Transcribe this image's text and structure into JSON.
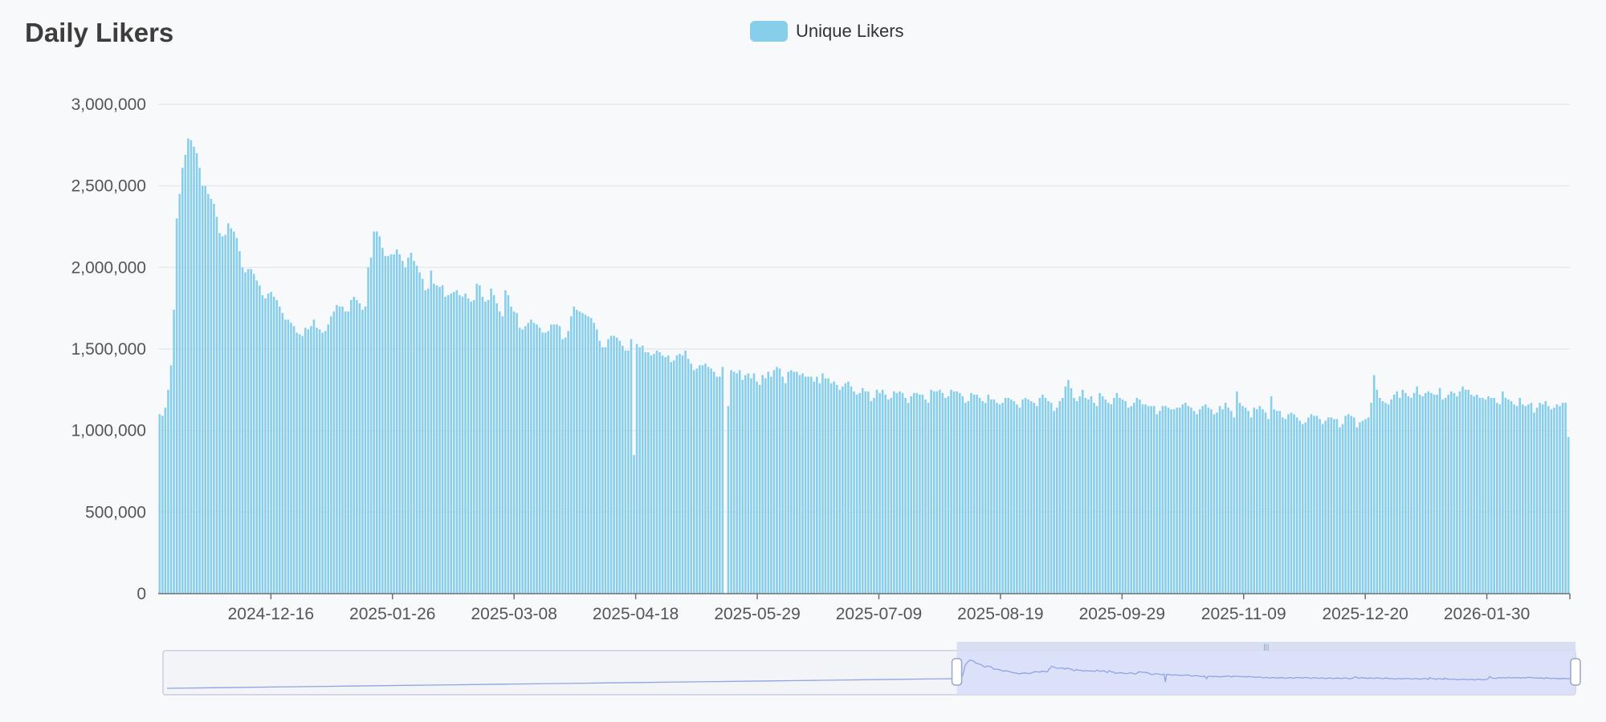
{
  "header": {
    "title": "Daily Likers"
  },
  "legend": {
    "label": "Unique Likers"
  },
  "colors": {
    "bar": "#87ceeb",
    "grid": "#e2e4ea",
    "axis": "#6e7079",
    "zoom_fill": "#d6ddf8",
    "zoom_line": "#8fa4e6",
    "zoom_border": "#c9cfe0"
  },
  "zoom": {
    "start_fraction": 0.562,
    "end_fraction": 1.0
  },
  "chart_data": {
    "type": "bar",
    "title": "Daily Likers",
    "xlabel": "",
    "ylabel": "",
    "ylim": [
      0,
      3000000
    ],
    "y_ticks": [
      "0",
      "500,000",
      "1,000,000",
      "1,500,000",
      "2,000,000",
      "2,500,000",
      "3,000,000"
    ],
    "x_ticks": [
      "2024-12-16",
      "2025-01-26",
      "2025-03-08",
      "2025-04-18",
      "2025-05-29",
      "2025-07-09",
      "2025-08-19",
      "2025-09-29",
      "2025-11-09",
      "2025-12-20",
      "2026-01-30"
    ],
    "x_start": "2024-11-08",
    "x_end": "2026-02-27",
    "grid": true,
    "legend_position": "top-center",
    "series": [
      {
        "name": "Unique Likers",
        "values": [
          1100000,
          1090000,
          1140000,
          1250000,
          1400000,
          1740000,
          2300000,
          2450000,
          2610000,
          2690000,
          2790000,
          2780000,
          2740000,
          2700000,
          2610000,
          2500000,
          2500000,
          2450000,
          2420000,
          2390000,
          2310000,
          2210000,
          2190000,
          2200000,
          2270000,
          2240000,
          2220000,
          2180000,
          2100000,
          2000000,
          1970000,
          1990000,
          1990000,
          1960000,
          1920000,
          1890000,
          1830000,
          1810000,
          1840000,
          1850000,
          1820000,
          1800000,
          1760000,
          1720000,
          1680000,
          1680000,
          1660000,
          1640000,
          1600000,
          1590000,
          1580000,
          1630000,
          1620000,
          1640000,
          1680000,
          1630000,
          1620000,
          1600000,
          1610000,
          1650000,
          1700000,
          1730000,
          1770000,
          1760000,
          1760000,
          1730000,
          1730000,
          1800000,
          1820000,
          1800000,
          1780000,
          1740000,
          1760000,
          2000000,
          2060000,
          2220000,
          2220000,
          2190000,
          2120000,
          2070000,
          2070000,
          2080000,
          2080000,
          2110000,
          2080000,
          2040000,
          2000000,
          2060000,
          2090000,
          2040000,
          2010000,
          1970000,
          1930000,
          1860000,
          1870000,
          1980000,
          1900000,
          1890000,
          1880000,
          1890000,
          1820000,
          1830000,
          1840000,
          1850000,
          1860000,
          1830000,
          1820000,
          1840000,
          1810000,
          1790000,
          1800000,
          1900000,
          1890000,
          1820000,
          1790000,
          1800000,
          1870000,
          1830000,
          1780000,
          1730000,
          1700000,
          1860000,
          1830000,
          1760000,
          1730000,
          1720000,
          1630000,
          1620000,
          1640000,
          1660000,
          1680000,
          1660000,
          1650000,
          1630000,
          1600000,
          1600000,
          1610000,
          1650000,
          1650000,
          1650000,
          1640000,
          1560000,
          1570000,
          1610000,
          1700000,
          1760000,
          1740000,
          1730000,
          1720000,
          1710000,
          1700000,
          1690000,
          1660000,
          1620000,
          1550000,
          1510000,
          1510000,
          1560000,
          1580000,
          1580000,
          1570000,
          1550000,
          1520000,
          1490000,
          1490000,
          1560000,
          850000,
          1530000,
          1510000,
          1520000,
          1480000,
          1480000,
          1460000,
          1470000,
          1490000,
          1480000,
          1460000,
          1450000,
          1460000,
          1420000,
          1430000,
          1460000,
          1470000,
          1460000,
          1490000,
          1440000,
          1410000,
          1370000,
          1380000,
          1400000,
          1400000,
          1410000,
          1390000,
          1380000,
          1360000,
          1330000,
          1330000,
          1390000,
          0,
          1150000,
          1370000,
          1360000,
          1350000,
          1370000,
          1310000,
          1340000,
          1350000,
          1320000,
          1350000,
          1300000,
          1280000,
          1340000,
          1320000,
          1360000,
          1330000,
          1370000,
          1390000,
          1380000,
          1330000,
          1290000,
          1360000,
          1370000,
          1360000,
          1360000,
          1340000,
          1350000,
          1330000,
          1330000,
          1330000,
          1300000,
          1330000,
          1290000,
          1350000,
          1320000,
          1320000,
          1290000,
          1300000,
          1280000,
          1250000,
          1270000,
          1290000,
          1300000,
          1270000,
          1240000,
          1220000,
          1230000,
          1260000,
          1240000,
          1240000,
          1180000,
          1200000,
          1250000,
          1230000,
          1250000,
          1220000,
          1190000,
          1200000,
          1240000,
          1230000,
          1240000,
          1230000,
          1200000,
          1170000,
          1210000,
          1230000,
          1230000,
          1220000,
          1220000,
          1190000,
          1170000,
          1250000,
          1240000,
          1240000,
          1250000,
          1230000,
          1200000,
          1210000,
          1250000,
          1240000,
          1240000,
          1230000,
          1210000,
          1170000,
          1180000,
          1230000,
          1220000,
          1220000,
          1200000,
          1180000,
          1170000,
          1220000,
          1190000,
          1190000,
          1170000,
          1160000,
          1170000,
          1200000,
          1200000,
          1190000,
          1180000,
          1160000,
          1140000,
          1190000,
          1200000,
          1190000,
          1180000,
          1170000,
          1150000,
          1200000,
          1220000,
          1200000,
          1180000,
          1170000,
          1120000,
          1140000,
          1180000,
          1200000,
          1270000,
          1310000,
          1260000,
          1200000,
          1180000,
          1210000,
          1250000,
          1200000,
          1190000,
          1210000,
          1170000,
          1150000,
          1230000,
          1210000,
          1190000,
          1170000,
          1160000,
          1200000,
          1230000,
          1200000,
          1190000,
          1180000,
          1140000,
          1150000,
          1170000,
          1200000,
          1190000,
          1160000,
          1160000,
          1150000,
          1150000,
          1150000,
          1100000,
          1120000,
          1150000,
          1150000,
          1140000,
          1130000,
          1130000,
          1140000,
          1140000,
          1160000,
          1170000,
          1150000,
          1140000,
          1120000,
          1100000,
          1130000,
          1150000,
          1160000,
          1140000,
          1130000,
          1100000,
          1110000,
          1150000,
          1130000,
          1170000,
          1140000,
          1120000,
          1080000,
          1240000,
          1170000,
          1150000,
          1140000,
          1120000,
          1080000,
          1140000,
          1130000,
          1150000,
          1130000,
          1110000,
          1070000,
          1210000,
          1130000,
          1120000,
          1120000,
          1080000,
          1070000,
          1100000,
          1110000,
          1100000,
          1080000,
          1060000,
          1040000,
          1050000,
          1080000,
          1100000,
          1090000,
          1090000,
          1070000,
          1040000,
          1060000,
          1080000,
          1080000,
          1070000,
          1070000,
          1020000,
          1040000,
          1090000,
          1100000,
          1090000,
          1080000,
          1020000,
          1050000,
          1060000,
          1070000,
          1080000,
          1170000,
          1340000,
          1250000,
          1200000,
          1180000,
          1170000,
          1160000,
          1190000,
          1220000,
          1240000,
          1200000,
          1250000,
          1230000,
          1210000,
          1200000,
          1230000,
          1270000,
          1220000,
          1210000,
          1230000,
          1240000,
          1230000,
          1220000,
          1220000,
          1260000,
          1190000,
          1200000,
          1220000,
          1240000,
          1230000,
          1210000,
          1240000,
          1270000,
          1250000,
          1250000,
          1220000,
          1210000,
          1220000,
          1200000,
          1200000,
          1190000,
          1210000,
          1200000,
          1200000,
          1170000,
          1160000,
          1240000,
          1200000,
          1190000,
          1180000,
          1160000,
          1150000,
          1200000,
          1160000,
          1150000,
          1160000,
          1170000,
          1110000,
          1140000,
          1170000,
          1160000,
          1180000,
          1150000,
          1130000,
          1140000,
          1160000,
          1150000,
          1170000,
          1170000,
          960000
        ]
      }
    ]
  }
}
